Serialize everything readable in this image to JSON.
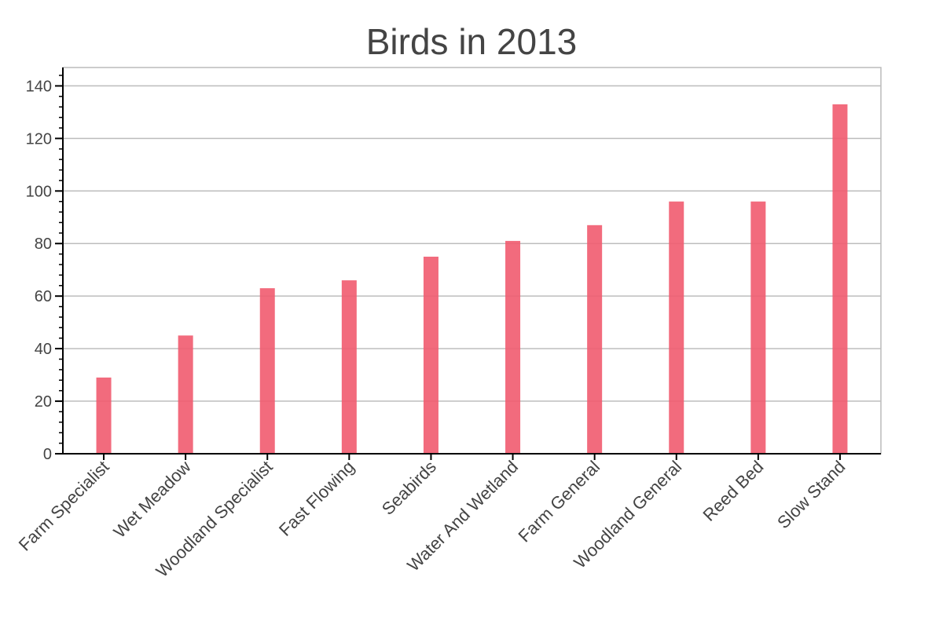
{
  "chart_data": {
    "type": "bar",
    "title": "Birds in 2013",
    "xlabel": "",
    "ylabel": "",
    "categories": [
      "Farm Specialist",
      "Wet Meadow",
      "Woodland Specialist",
      "Fast Flowing",
      "Seabirds",
      "Water And Wetland",
      "Farm General",
      "Woodland General",
      "Reed Bed",
      "Slow Stand"
    ],
    "values": [
      29,
      45,
      63,
      66,
      75,
      81,
      87,
      96,
      96,
      133
    ],
    "ylim": [
      0,
      147
    ],
    "yticks": [
      0,
      20,
      40,
      60,
      80,
      100,
      120,
      140
    ],
    "grid": true,
    "bar_color": "#f15b6f",
    "axis_color": "#000000",
    "text_color": "#444444",
    "grid_color": "#bdbdbd"
  }
}
